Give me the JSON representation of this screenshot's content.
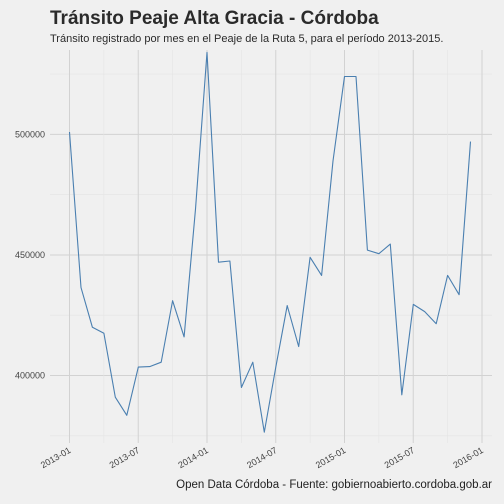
{
  "chart_data": {
    "type": "line",
    "title": "Tránsito Peaje Alta Gracia - Córdoba",
    "subtitle": "Tránsito registrado por mes en el Peaje de la Ruta 5, para el período 2013-2015.",
    "caption": "Open Data Córdoba - Fuente: gobiernoabierto.cordoba.gob.ar",
    "xlabel": "",
    "ylabel": "",
    "grid": true,
    "series_color": "#4a7fb0",
    "x_ticks": [
      "2013-01",
      "2013-07",
      "2014-01",
      "2014-07",
      "2015-01",
      "2015-07",
      "2016-01"
    ],
    "y_ticks": [
      400000,
      450000,
      500000
    ],
    "y_tick_labels": [
      "400000",
      "450000",
      "500000"
    ],
    "ylim": [
      372000,
      535000
    ],
    "x": [
      "2013-01",
      "2013-02",
      "2013-03",
      "2013-04",
      "2013-05",
      "2013-06",
      "2013-07",
      "2013-08",
      "2013-09",
      "2013-10",
      "2013-11",
      "2013-12",
      "2014-01",
      "2014-02",
      "2014-03",
      "2014-04",
      "2014-05",
      "2014-06",
      "2014-07",
      "2014-08",
      "2014-09",
      "2014-10",
      "2014-11",
      "2014-12",
      "2015-01",
      "2015-02",
      "2015-03",
      "2015-04",
      "2015-05",
      "2015-06",
      "2015-07",
      "2015-08",
      "2015-09",
      "2015-10",
      "2015-11",
      "2015-12"
    ],
    "values": [
      501000,
      436500,
      420000,
      417500,
      391000,
      383500,
      403500,
      403700,
      405500,
      431000,
      416000,
      469000,
      534000,
      447000,
      447500,
      395000,
      405500,
      376500,
      403500,
      429000,
      412000,
      449000,
      441500,
      489000,
      524000,
      524000,
      452000,
      450500,
      454500,
      392000,
      429500,
      426500,
      421500,
      441500,
      433500,
      497000
    ]
  }
}
